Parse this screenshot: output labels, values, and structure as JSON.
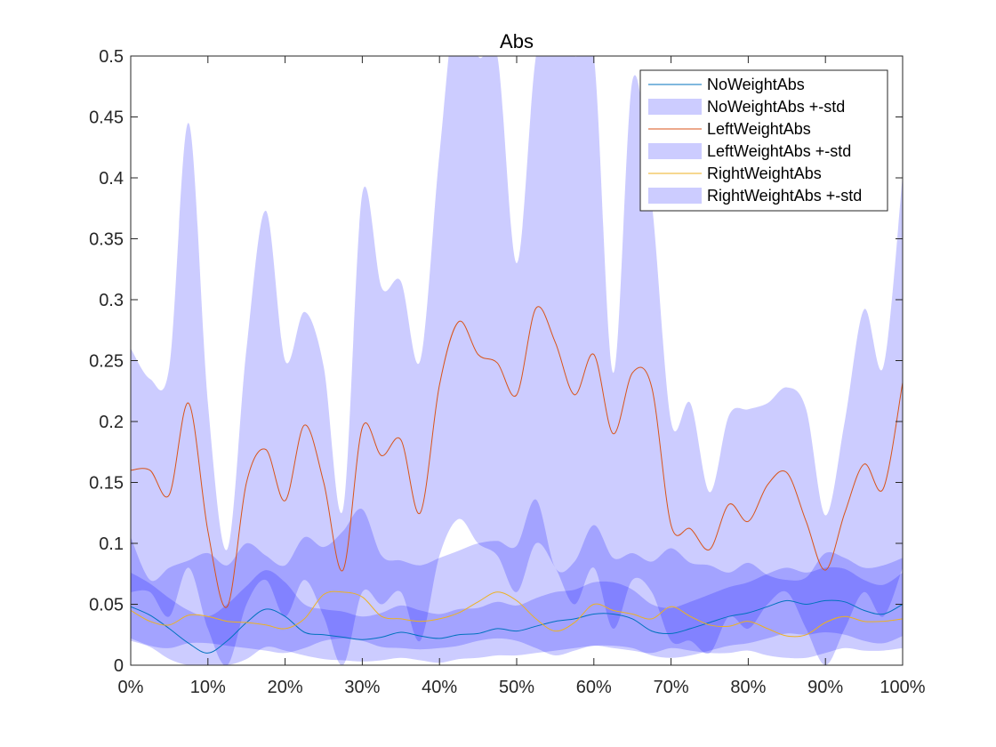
{
  "chart_data": {
    "type": "area",
    "title": "Abs",
    "xlabel": "",
    "ylabel": "",
    "xlim": [
      0,
      100
    ],
    "ylim": [
      0,
      0.5
    ],
    "grid": false,
    "legend_position": "top-right",
    "x_ticks": [
      "0%",
      "10%",
      "20%",
      "30%",
      "40%",
      "50%",
      "60%",
      "70%",
      "80%",
      "90%",
      "100%"
    ],
    "y_ticks": [
      "0",
      "0.05",
      "0.1",
      "0.15",
      "0.2",
      "0.25",
      "0.3",
      "0.35",
      "0.4",
      "0.45",
      "0.5"
    ],
    "x": [
      0,
      2.5,
      5,
      7.5,
      10,
      12.5,
      15,
      17.5,
      20,
      22.5,
      25,
      27.5,
      30,
      32.5,
      35,
      37.5,
      40,
      42.5,
      45,
      47.5,
      50,
      52.5,
      55,
      57.5,
      60,
      62.5,
      65,
      67.5,
      70,
      72.5,
      75,
      77.5,
      80,
      82.5,
      85,
      87.5,
      90,
      92.5,
      95,
      97.5,
      100
    ],
    "series": [
      {
        "name": "NoWeightAbs",
        "color": "#0072BD",
        "values": [
          0.048,
          0.041,
          0.03,
          0.018,
          0.01,
          0.02,
          0.035,
          0.046,
          0.04,
          0.027,
          0.025,
          0.023,
          0.021,
          0.023,
          0.027,
          0.024,
          0.022,
          0.025,
          0.026,
          0.03,
          0.028,
          0.032,
          0.036,
          0.038,
          0.042,
          0.042,
          0.038,
          0.028,
          0.026,
          0.03,
          0.035,
          0.04,
          0.043,
          0.048,
          0.053,
          0.05,
          0.053,
          0.052,
          0.045,
          0.042,
          0.05
        ]
      },
      {
        "name": "NoWeightAbs +-std",
        "color": "#C9C9F9",
        "lower": [
          0.02,
          0.015,
          0.005,
          0.0,
          0.0,
          0.0,
          0.005,
          0.015,
          0.012,
          0.008,
          0.005,
          0.004,
          0.003,
          0.004,
          0.006,
          0.004,
          0.002,
          0.005,
          0.006,
          0.008,
          0.008,
          0.01,
          0.012,
          0.014,
          0.016,
          0.016,
          0.014,
          0.008,
          0.006,
          0.008,
          0.012,
          0.016,
          0.018,
          0.022,
          0.026,
          0.025,
          0.027,
          0.025,
          0.02,
          0.018,
          0.024
        ],
        "upper": [
          0.076,
          0.067,
          0.055,
          0.045,
          0.04,
          0.05,
          0.065,
          0.078,
          0.068,
          0.05,
          0.046,
          0.044,
          0.04,
          0.043,
          0.049,
          0.045,
          0.042,
          0.046,
          0.047,
          0.052,
          0.049,
          0.055,
          0.06,
          0.062,
          0.068,
          0.068,
          0.062,
          0.05,
          0.047,
          0.052,
          0.058,
          0.064,
          0.068,
          0.075,
          0.08,
          0.076,
          0.08,
          0.079,
          0.07,
          0.066,
          0.076
        ]
      },
      {
        "name": "LeftWeightAbs",
        "color": "#D95319",
        "values": [
          0.16,
          0.16,
          0.14,
          0.215,
          0.11,
          0.048,
          0.15,
          0.177,
          0.135,
          0.197,
          0.15,
          0.078,
          0.195,
          0.172,
          0.185,
          0.125,
          0.23,
          0.282,
          0.255,
          0.248,
          0.222,
          0.293,
          0.265,
          0.222,
          0.255,
          0.19,
          0.24,
          0.228,
          0.115,
          0.112,
          0.095,
          0.132,
          0.118,
          0.148,
          0.158,
          0.118,
          0.078,
          0.125,
          0.165,
          0.145,
          0.232
        ]
      },
      {
        "name": "LeftWeightAbs +-std",
        "color": "#C9C9F9",
        "lower": [
          0.06,
          0.06,
          0.04,
          0.08,
          0.03,
          0.0,
          0.05,
          0.07,
          0.04,
          0.07,
          0.04,
          0.0,
          0.06,
          0.05,
          0.06,
          0.02,
          0.09,
          0.12,
          0.1,
          0.09,
          0.06,
          0.1,
          0.08,
          0.05,
          0.08,
          0.03,
          0.07,
          0.06,
          0.02,
          0.02,
          0.01,
          0.04,
          0.03,
          0.05,
          0.06,
          0.03,
          0.0,
          0.03,
          0.06,
          0.04,
          0.08
        ],
        "upper": [
          0.26,
          0.235,
          0.245,
          0.445,
          0.215,
          0.095,
          0.26,
          0.373,
          0.25,
          0.29,
          0.245,
          0.128,
          0.387,
          0.31,
          0.315,
          0.25,
          0.42,
          0.56,
          0.5,
          0.5,
          0.33,
          0.5,
          0.54,
          0.5,
          0.5,
          0.24,
          0.48,
          0.38,
          0.2,
          0.215,
          0.142,
          0.205,
          0.21,
          0.215,
          0.228,
          0.21,
          0.123,
          0.2,
          0.292,
          0.245,
          0.402
        ]
      },
      {
        "name": "RightWeightAbs",
        "color": "#EDB120",
        "values": [
          0.045,
          0.036,
          0.033,
          0.041,
          0.04,
          0.036,
          0.035,
          0.033,
          0.03,
          0.038,
          0.058,
          0.06,
          0.056,
          0.04,
          0.038,
          0.036,
          0.038,
          0.043,
          0.052,
          0.06,
          0.053,
          0.038,
          0.028,
          0.035,
          0.05,
          0.045,
          0.042,
          0.038,
          0.048,
          0.04,
          0.033,
          0.032,
          0.036,
          0.03,
          0.024,
          0.025,
          0.035,
          0.04,
          0.036,
          0.036,
          0.038
        ]
      },
      {
        "name": "RightWeightAbs +-std",
        "color": "#C9C9F9",
        "lower": [
          0.022,
          0.016,
          0.014,
          0.018,
          0.018,
          0.016,
          0.014,
          0.012,
          0.01,
          0.014,
          0.02,
          0.022,
          0.02,
          0.015,
          0.014,
          0.013,
          0.014,
          0.016,
          0.02,
          0.022,
          0.02,
          0.014,
          0.008,
          0.012,
          0.016,
          0.014,
          0.012,
          0.01,
          0.014,
          0.012,
          0.01,
          0.01,
          0.012,
          0.008,
          0.006,
          0.006,
          0.01,
          0.014,
          0.012,
          0.012,
          0.014
        ],
        "upper": [
          0.105,
          0.07,
          0.08,
          0.086,
          0.092,
          0.082,
          0.1,
          0.09,
          0.082,
          0.105,
          0.097,
          0.11,
          0.128,
          0.09,
          0.086,
          0.082,
          0.088,
          0.094,
          0.1,
          0.102,
          0.098,
          0.136,
          0.08,
          0.085,
          0.115,
          0.088,
          0.092,
          0.085,
          0.096,
          0.084,
          0.082,
          0.076,
          0.084,
          0.074,
          0.07,
          0.072,
          0.092,
          0.088,
          0.08,
          0.082,
          0.088
        ]
      }
    ]
  }
}
